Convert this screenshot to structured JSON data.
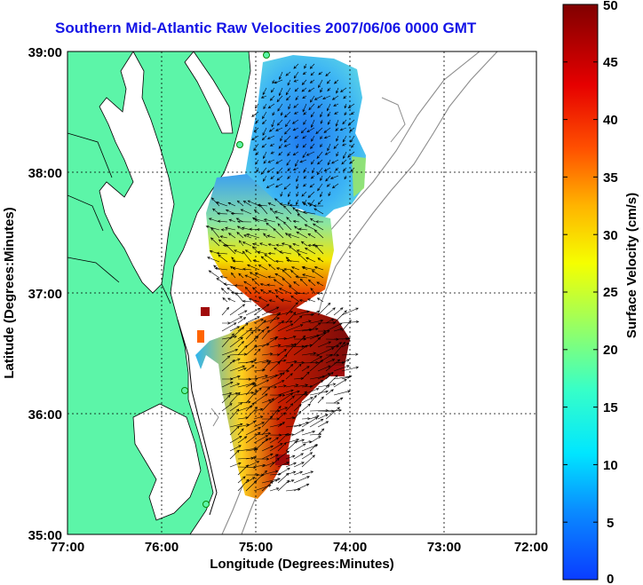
{
  "title": "Southern Mid-Atlantic Raw Velocities 2007/06/06 0000 GMT",
  "xaxis": {
    "label": "Longitude (Degrees:Minutes)",
    "ticks": [
      "77:00",
      "76:00",
      "75:00",
      "74:00",
      "73:00",
      "72:00"
    ],
    "range": [
      -77,
      -72
    ]
  },
  "yaxis": {
    "label": "Latitude (Degrees:Minutes)",
    "ticks": [
      "39:00",
      "38:00",
      "37:00",
      "36:00",
      "35:00"
    ],
    "range": [
      35,
      39
    ]
  },
  "colorbar": {
    "label": "Surface Velocity (cm/s)",
    "ticks": [
      "50",
      "45",
      "40",
      "35",
      "30",
      "25",
      "20",
      "15",
      "10",
      "5",
      "0"
    ],
    "range": [
      0,
      50
    ]
  },
  "colors": {
    "land": "#5cf5a8",
    "title": "#1414e6",
    "grid": "#000000"
  }
}
